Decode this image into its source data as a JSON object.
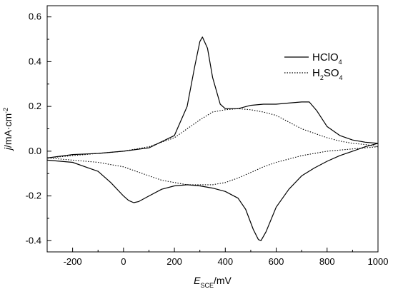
{
  "chart_data": {
    "type": "line",
    "title": "",
    "xlabel": {
      "main": "E",
      "sub": "SCE",
      "unit": "/mV"
    },
    "ylabel": {
      "main": "j",
      "unit": "/mA·cm",
      "sup": "-2"
    },
    "xlim": [
      -300,
      1000
    ],
    "ylim": [
      -0.45,
      0.65
    ],
    "x_ticks": [
      -200,
      0,
      200,
      400,
      600,
      800,
      1000
    ],
    "x_tick_labels": [
      "-200",
      "0",
      "200",
      "400",
      "600",
      "800",
      "1000"
    ],
    "y_ticks": [
      -0.4,
      -0.2,
      0.0,
      0.2,
      0.4,
      0.6
    ],
    "y_tick_labels": [
      "-0.4",
      "-0.2",
      "0.0",
      "0.2",
      "0.4",
      "0.6"
    ],
    "grid": false,
    "legend_position": "top-right",
    "series": [
      {
        "name": "HClO4",
        "legend_parts": [
          {
            "t": "HClO"
          },
          {
            "t": "4",
            "sub": true
          }
        ],
        "style": "solid",
        "color": "#000000",
        "x": [
          -300,
          -200,
          -100,
          0,
          100,
          200,
          250,
          280,
          300,
          310,
          330,
          350,
          380,
          400,
          450,
          500,
          550,
          600,
          650,
          700,
          730,
          760,
          800,
          850,
          900,
          950,
          1000,
          950,
          900,
          850,
          800,
          750,
          700,
          650,
          600,
          560,
          540,
          530,
          510,
          480,
          450,
          400,
          350,
          300,
          250,
          200,
          150,
          100,
          60,
          40,
          20,
          0,
          -50,
          -100,
          -200,
          -300
        ],
        "y": [
          -0.03,
          -0.015,
          -0.01,
          0.0,
          0.015,
          0.07,
          0.2,
          0.38,
          0.49,
          0.51,
          0.46,
          0.33,
          0.21,
          0.19,
          0.19,
          0.205,
          0.21,
          0.21,
          0.215,
          0.22,
          0.22,
          0.18,
          0.11,
          0.07,
          0.05,
          0.04,
          0.035,
          0.02,
          0.0,
          -0.02,
          -0.045,
          -0.075,
          -0.11,
          -0.17,
          -0.25,
          -0.36,
          -0.4,
          -0.395,
          -0.35,
          -0.26,
          -0.21,
          -0.18,
          -0.165,
          -0.155,
          -0.15,
          -0.155,
          -0.17,
          -0.2,
          -0.225,
          -0.23,
          -0.22,
          -0.2,
          -0.14,
          -0.09,
          -0.05,
          -0.04
        ]
      },
      {
        "name": "H2SO4",
        "legend_parts": [
          {
            "t": "H"
          },
          {
            "t": "2",
            "sub": true
          },
          {
            "t": "SO"
          },
          {
            "t": "4",
            "sub": true
          }
        ],
        "style": "dotted",
        "color": "#000000",
        "x": [
          -300,
          -200,
          -100,
          0,
          100,
          200,
          250,
          300,
          350,
          400,
          450,
          500,
          550,
          600,
          650,
          700,
          750,
          800,
          850,
          900,
          950,
          1000,
          950,
          900,
          850,
          800,
          750,
          700,
          650,
          600,
          550,
          500,
          450,
          400,
          350,
          300,
          250,
          200,
          150,
          100,
          50,
          0,
          -100,
          -200,
          -300
        ],
        "y": [
          -0.03,
          -0.02,
          -0.01,
          0.0,
          0.02,
          0.06,
          0.1,
          0.14,
          0.175,
          0.185,
          0.19,
          0.185,
          0.175,
          0.16,
          0.13,
          0.1,
          0.08,
          0.06,
          0.045,
          0.035,
          0.03,
          0.02,
          0.015,
          0.01,
          0.005,
          0.0,
          -0.01,
          -0.02,
          -0.035,
          -0.05,
          -0.07,
          -0.095,
          -0.12,
          -0.14,
          -0.15,
          -0.15,
          -0.15,
          -0.14,
          -0.13,
          -0.11,
          -0.09,
          -0.07,
          -0.05,
          -0.04,
          -0.03
        ]
      }
    ]
  }
}
